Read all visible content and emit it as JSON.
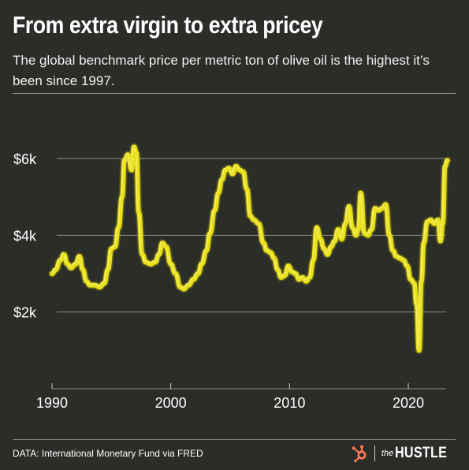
{
  "header": {
    "title": "From extra virgin to extra pricey",
    "subtitle": "The global benchmark price per metric ton of olive oil is the highest it’s been since 1997."
  },
  "footer": {
    "source": "DATA: International Monetary Fund via FRED",
    "brand_the": "the",
    "brand_name": "HUSTLE",
    "brand_icon": "hubspot-sprocket-icon"
  },
  "colors": {
    "background": "#2b2d29",
    "line": "#e8e01a",
    "line_shadow": "#9c9612",
    "grid": "#8b8d88",
    "brand_orange": "#ff7a59"
  },
  "chart_data": {
    "type": "line",
    "title": "",
    "xlabel": "",
    "ylabel": "",
    "xlim": [
      1990,
      2023.3
    ],
    "ylim": [
      0,
      6800
    ],
    "x_ticks": [
      1990,
      2000,
      2010,
      2020
    ],
    "x_tick_labels": [
      "1990",
      "2000",
      "2010",
      "2020"
    ],
    "y_ticks": [
      2000,
      4000,
      6000
    ],
    "y_tick_labels": [
      "$2k",
      "$4k",
      "$6k"
    ],
    "grid": "horizontal",
    "legend": "none",
    "series": [
      {
        "name": "",
        "x": [
          1990.0,
          1990.3,
          1990.7,
          1991.0,
          1991.3,
          1991.6,
          1992.0,
          1992.3,
          1992.6,
          1992.9,
          1993.2,
          1993.6,
          1994.0,
          1994.4,
          1994.7,
          1995.0,
          1995.3,
          1995.6,
          1995.9,
          1996.1,
          1996.4,
          1996.7,
          1996.9,
          1997.1,
          1997.3,
          1997.6,
          1997.9,
          1998.3,
          1998.7,
          1999.0,
          1999.3,
          1999.6,
          2000.0,
          2000.4,
          2000.8,
          2001.1,
          2001.5,
          2001.9,
          2002.3,
          2002.6,
          2003.0,
          2003.3,
          2003.7,
          2004.0,
          2004.3,
          2004.6,
          2004.9,
          2005.2,
          2005.5,
          2005.8,
          2006.1,
          2006.4,
          2006.7,
          2007.0,
          2007.4,
          2007.8,
          2008.1,
          2008.4,
          2008.7,
          2009.0,
          2009.3,
          2009.6,
          2009.9,
          2010.2,
          2010.5,
          2010.8,
          2011.1,
          2011.4,
          2011.7,
          2012.0,
          2012.3,
          2012.6,
          2012.9,
          2013.2,
          2013.5,
          2013.8,
          2014.1,
          2014.4,
          2014.7,
          2015.0,
          2015.3,
          2015.6,
          2015.8,
          2016.0,
          2016.3,
          2016.6,
          2016.9,
          2017.2,
          2017.5,
          2017.8,
          2018.1,
          2018.4,
          2018.7,
          2019.0,
          2019.3,
          2019.6,
          2019.9,
          2020.2,
          2020.5,
          2020.7,
          2020.9,
          2021.1,
          2021.3,
          2021.6,
          2021.9,
          2022.2,
          2022.5,
          2022.7,
          2022.9,
          2023.1,
          2023.3
        ],
        "values": [
          3000,
          3100,
          3350,
          3500,
          3250,
          3150,
          3250,
          3450,
          3100,
          2800,
          2700,
          2700,
          2650,
          2750,
          3100,
          3650,
          3700,
          4200,
          5000,
          5950,
          6100,
          5700,
          6300,
          6150,
          4600,
          3500,
          3300,
          3250,
          3300,
          3500,
          3800,
          3700,
          3250,
          3000,
          2650,
          2600,
          2700,
          2850,
          3000,
          3250,
          3600,
          4050,
          4650,
          5100,
          5450,
          5700,
          5750,
          5600,
          5800,
          5700,
          5650,
          5200,
          4500,
          4400,
          4300,
          3800,
          3600,
          3550,
          3400,
          3100,
          2900,
          2950,
          3200,
          3050,
          3000,
          2850,
          2900,
          2800,
          2900,
          3350,
          4200,
          3900,
          3650,
          3500,
          3700,
          3850,
          4150,
          3900,
          4300,
          4750,
          4200,
          4000,
          4150,
          5100,
          4050,
          4000,
          4150,
          4700,
          4650,
          4700,
          4800,
          4000,
          3600,
          3450,
          3400,
          3350,
          3200,
          2850,
          2750,
          2200,
          1000,
          2800,
          3800,
          4350,
          4400,
          4300,
          4400,
          3850,
          4300,
          5800,
          5950
        ]
      }
    ]
  }
}
